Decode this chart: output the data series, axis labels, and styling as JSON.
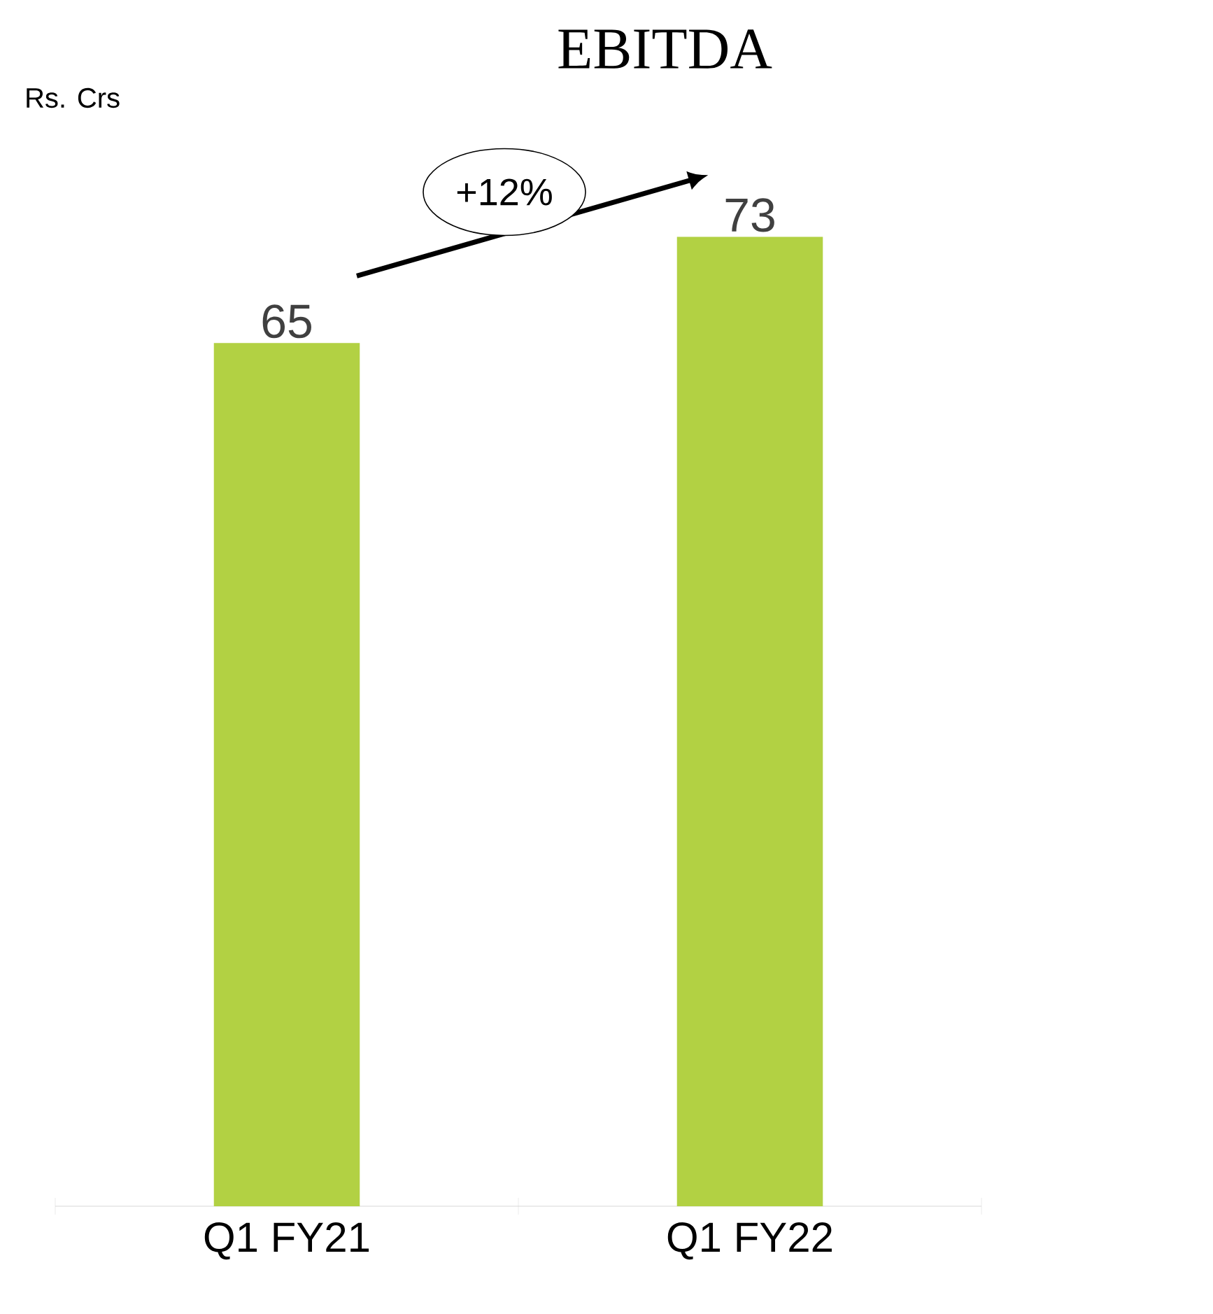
{
  "chart_data": {
    "type": "bar",
    "title": "EBITDA",
    "ylabel": "Rs. Crs",
    "categories": [
      "Q1 FY21",
      "Q1 FY22"
    ],
    "values": [
      65,
      73
    ],
    "color": "#b2d143",
    "data_labels": true,
    "annotations": [
      "+12%"
    ]
  }
}
